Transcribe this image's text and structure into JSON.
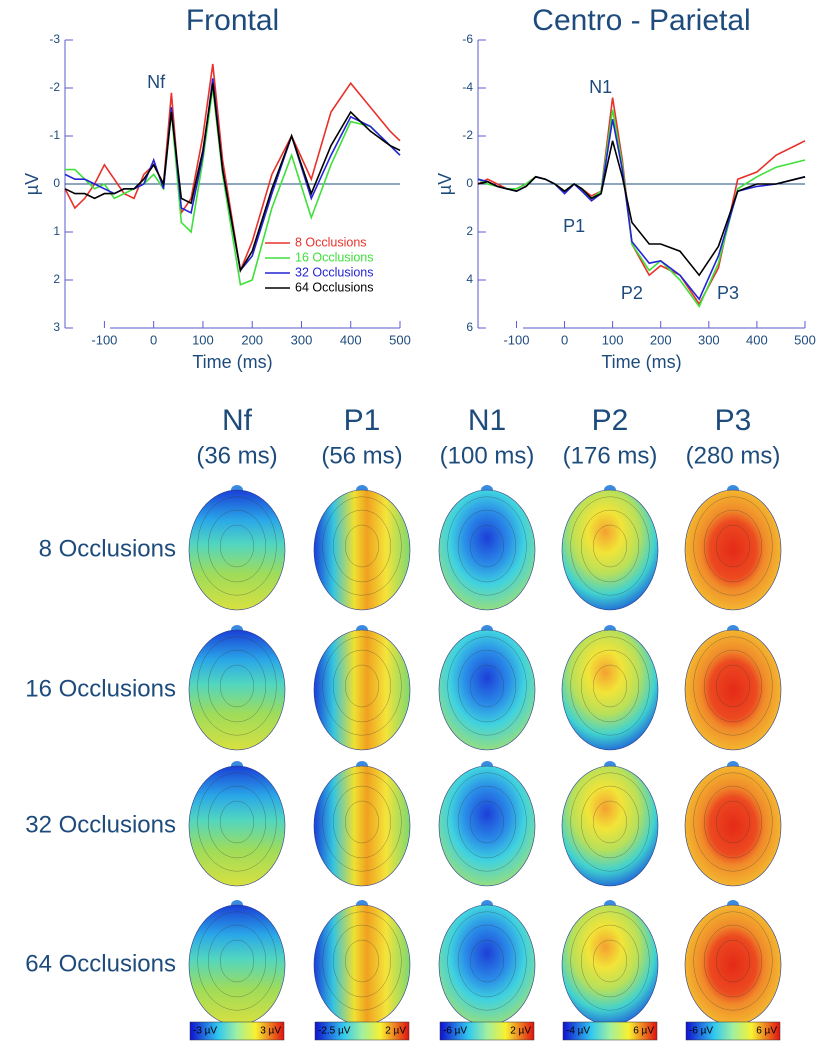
{
  "chart_data": [
    {
      "type": "line",
      "title": "Frontal",
      "x_label": "Time (ms)",
      "y_label": "µV",
      "x": [
        -180,
        -160,
        -140,
        -120,
        -100,
        -80,
        -60,
        -40,
        -20,
        0,
        20,
        36,
        56,
        76,
        100,
        120,
        140,
        176,
        200,
        240,
        280,
        320,
        360,
        400,
        440,
        480,
        500
      ],
      "series": [
        {
          "name": "8 Occlusions",
          "color": "#e8312a",
          "values": [
            0.1,
            0.5,
            0.3,
            0,
            -0.4,
            -0.1,
            0.2,
            0.3,
            -0.2,
            -0.4,
            0,
            -1.9,
            0.6,
            0.3,
            -1.0,
            -2.5,
            -0.5,
            1.8,
            1.2,
            -0.2,
            -1.0,
            -0.1,
            -1.5,
            -2.1,
            -1.6,
            -1.1,
            -0.9
          ]
        },
        {
          "name": "16 Occlusions",
          "color": "#3ee03a",
          "values": [
            -0.3,
            -0.3,
            -0.1,
            0.1,
            0,
            0.3,
            0.2,
            0.1,
            0,
            -0.2,
            0.1,
            -1.5,
            0.8,
            1.0,
            -0.5,
            -2.0,
            -0.2,
            2.1,
            2.0,
            0.5,
            -0.6,
            0.7,
            -0.4,
            -1.3,
            -1.2,
            -0.8,
            -0.6
          ]
        },
        {
          "name": "32 Occlusions",
          "color": "#2424d6",
          "values": [
            -0.2,
            -0.1,
            -0.1,
            0,
            0.1,
            0.2,
            0.1,
            0.1,
            0,
            -0.5,
            0.1,
            -1.6,
            0.5,
            0.6,
            -0.6,
            -2.2,
            -0.3,
            1.8,
            1.5,
            0.2,
            -1.0,
            0.3,
            -0.6,
            -1.4,
            -1.2,
            -0.8,
            -0.6
          ]
        },
        {
          "name": "64 Occlusions",
          "color": "#000000",
          "values": [
            0.1,
            0.2,
            0.2,
            0.3,
            0.2,
            0.2,
            0.1,
            0.1,
            -0.1,
            -0.4,
            0,
            -1.5,
            0.3,
            0.4,
            -0.7,
            -2.1,
            -0.3,
            1.8,
            1.4,
            0.1,
            -1.0,
            0.2,
            -0.8,
            -1.5,
            -1.1,
            -0.8,
            -0.7
          ]
        }
      ],
      "xlim": [
        -180,
        500
      ],
      "xticks": [
        -100,
        0,
        100,
        200,
        300,
        400,
        500
      ],
      "ylim": [
        -3,
        3
      ],
      "yticks": [
        -3,
        -2,
        -1,
        0,
        1,
        2,
        3
      ],
      "y_inverted": true,
      "legend": "lower right",
      "annotations": [
        {
          "text": "Nf",
          "x": 5,
          "y": -2.1
        }
      ]
    },
    {
      "type": "line",
      "title": "Centro - Parietal",
      "x_label": "Time (ms)",
      "y_label": "µV",
      "x": [
        -180,
        -160,
        -140,
        -120,
        -100,
        -80,
        -60,
        -40,
        -20,
        0,
        20,
        36,
        56,
        76,
        100,
        120,
        140,
        176,
        200,
        240,
        280,
        320,
        360,
        400,
        440,
        480,
        500
      ],
      "series": [
        {
          "name": "8 Occlusions",
          "color": "#e8312a",
          "values": [
            0,
            -0.2,
            0,
            0.2,
            0.2,
            0,
            -0.3,
            -0.2,
            0,
            0.3,
            0,
            0.2,
            0.5,
            0.3,
            -3.6,
            -1.0,
            2.5,
            3.8,
            3.4,
            3.8,
            5.0,
            3.5,
            -0.2,
            -0.5,
            -1.2,
            -1.6,
            -1.8
          ]
        },
        {
          "name": "16 Occlusions",
          "color": "#3ee03a",
          "values": [
            -0.2,
            0,
            0.1,
            0.2,
            0.2,
            0,
            -0.3,
            -0.2,
            0,
            0.3,
            0,
            0.2,
            0.6,
            0.3,
            -3.1,
            -0.8,
            2.5,
            3.6,
            3.2,
            4.0,
            5.1,
            3.3,
            0.2,
            -0.3,
            -0.7,
            -0.9,
            -1.0
          ]
        },
        {
          "name": "32 Occlusions",
          "color": "#2424d6",
          "values": [
            -0.2,
            -0.1,
            0.1,
            0.2,
            0.3,
            0.1,
            -0.3,
            -0.2,
            0,
            0.4,
            0,
            0.3,
            0.7,
            0.4,
            -2.7,
            -0.6,
            2.4,
            3.3,
            3.2,
            3.8,
            4.8,
            3.0,
            0.3,
            0.1,
            0,
            -0.2,
            -0.3
          ]
        },
        {
          "name": "64 Occlusions",
          "color": "#000000",
          "values": [
            0,
            -0.1,
            0.1,
            0.2,
            0.3,
            0.1,
            -0.3,
            -0.2,
            0,
            0.3,
            0,
            0.2,
            0.6,
            0.4,
            -1.8,
            -0.3,
            1.6,
            2.5,
            2.5,
            2.8,
            3.8,
            2.6,
            0.3,
            0,
            0,
            -0.2,
            -0.3
          ]
        }
      ],
      "xlim": [
        -180,
        500
      ],
      "xticks": [
        -100,
        0,
        100,
        200,
        300,
        400,
        500
      ],
      "ylim": [
        -6,
        6
      ],
      "yticks": [
        -6,
        -4,
        -2,
        0,
        2,
        4,
        6
      ],
      "y_inverted": true,
      "annotations": [
        {
          "text": "N1",
          "x": 75,
          "y": -4.0
        },
        {
          "text": "P1",
          "x": 20,
          "y": 1.8
        },
        {
          "text": "P2",
          "x": 140,
          "y": 4.6
        },
        {
          "text": "P3",
          "x": 340,
          "y": 4.6
        }
      ]
    }
  ],
  "topomaps": {
    "columns": [
      {
        "label": "Nf",
        "time": "(36 ms)",
        "scale_min": "-3 µV",
        "scale_max": "3 µV"
      },
      {
        "label": "P1",
        "time": "(56 ms)",
        "scale_min": "-2.5 µV",
        "scale_max": "2 µV"
      },
      {
        "label": "N1",
        "time": "(100 ms)",
        "scale_min": "-6 µV",
        "scale_max": "2 µV"
      },
      {
        "label": "P2",
        "time": "(176 ms)",
        "scale_min": "-4 µV",
        "scale_max": "6 µV"
      },
      {
        "label": "P3",
        "time": "(280 ms)",
        "scale_min": "-6 µV",
        "scale_max": "6 µV"
      }
    ],
    "rows": [
      "8 Occlusions",
      "16 Occlusions",
      "32 Occlusions",
      "64 Occlusions"
    ]
  }
}
